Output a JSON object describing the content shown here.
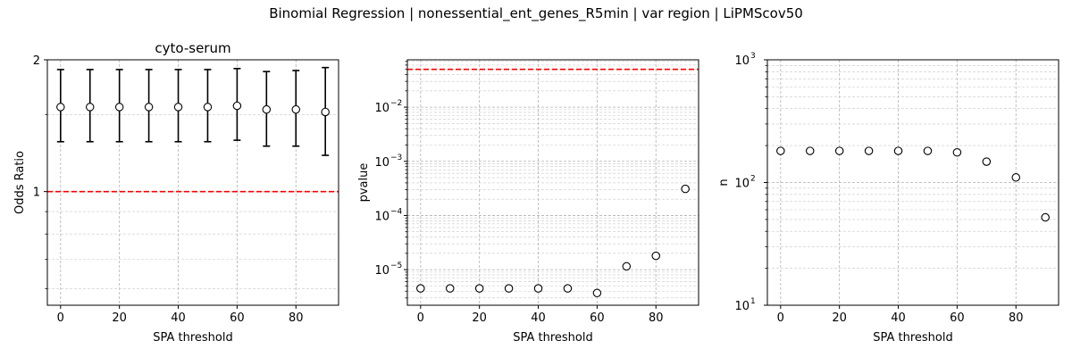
{
  "figure": {
    "suptitle": "Binomial Regression | nonessential_ent_genes_R5min | var region | LiPMScov50"
  },
  "chart_data": [
    {
      "type": "scatter",
      "title": "cyto-serum",
      "xlabel": "SPA threshold",
      "ylabel": "Odds Ratio",
      "yscale": "log",
      "xlim": [
        -4.5,
        94.5
      ],
      "ylim": [
        0.55,
        2.0
      ],
      "xticks": [
        0,
        20,
        40,
        60,
        80
      ],
      "xtick_labels": [
        "0",
        "20",
        "40",
        "60",
        "80"
      ],
      "yticks": [
        1,
        2
      ],
      "ytick_labels": [
        "1",
        "2"
      ],
      "yminor_ticks": [
        0.6,
        0.7,
        0.8,
        0.9,
        1.5
      ],
      "grid": true,
      "reference_line": 1.0,
      "reference_color": "#ff0000",
      "marker_color": "#000000",
      "x": [
        0,
        10,
        20,
        30,
        40,
        50,
        60,
        70,
        80,
        90
      ],
      "y": [
        1.56,
        1.56,
        1.56,
        1.56,
        1.56,
        1.56,
        1.57,
        1.54,
        1.54,
        1.52
      ],
      "err_low": [
        1.3,
        1.3,
        1.3,
        1.3,
        1.3,
        1.3,
        1.31,
        1.27,
        1.27,
        1.21
      ],
      "err_high": [
        1.9,
        1.9,
        1.9,
        1.9,
        1.9,
        1.9,
        1.91,
        1.88,
        1.89,
        1.92
      ]
    },
    {
      "type": "scatter",
      "title": "",
      "xlabel": "SPA threshold",
      "ylabel": "pvalue",
      "yscale": "log",
      "xlim": [
        -4.5,
        94.5
      ],
      "ylim": [
        2.2e-06,
        0.075
      ],
      "xticks": [
        0,
        20,
        40,
        60,
        80
      ],
      "xtick_labels": [
        "0",
        "20",
        "40",
        "60",
        "80"
      ],
      "yticks": [
        1e-05,
        0.0001,
        0.001,
        0.01
      ],
      "ytick_labels": [
        "10",
        "10",
        "10",
        "10"
      ],
      "ytick_exponents": [
        "−5",
        "−4",
        "−3",
        "−2"
      ],
      "grid": true,
      "reference_line": 0.05,
      "reference_color": "#ff0000",
      "marker_color": "#000000",
      "x": [
        0,
        10,
        20,
        30,
        40,
        50,
        60,
        70,
        80,
        90
      ],
      "y": [
        4.5e-06,
        4.5e-06,
        4.5e-06,
        4.5e-06,
        4.5e-06,
        4.5e-06,
        3.7e-06,
        1.15e-05,
        1.8e-05,
        0.00031
      ]
    },
    {
      "type": "scatter",
      "title": "",
      "xlabel": "SPA threshold",
      "ylabel": "n",
      "yscale": "log",
      "xlim": [
        -4.5,
        94.5
      ],
      "ylim": [
        10,
        1000
      ],
      "xticks": [
        0,
        20,
        40,
        60,
        80
      ],
      "xtick_labels": [
        "0",
        "20",
        "40",
        "60",
        "80"
      ],
      "yticks": [
        10,
        100,
        1000
      ],
      "ytick_labels": [
        "10",
        "10",
        "10"
      ],
      "ytick_exponents": [
        "1",
        "2",
        "3"
      ],
      "grid": true,
      "marker_color": "#000000",
      "x": [
        0,
        10,
        20,
        30,
        40,
        50,
        60,
        70,
        80,
        90
      ],
      "y": [
        181,
        181,
        181,
        181,
        181,
        181,
        176,
        148,
        110,
        52
      ]
    }
  ]
}
